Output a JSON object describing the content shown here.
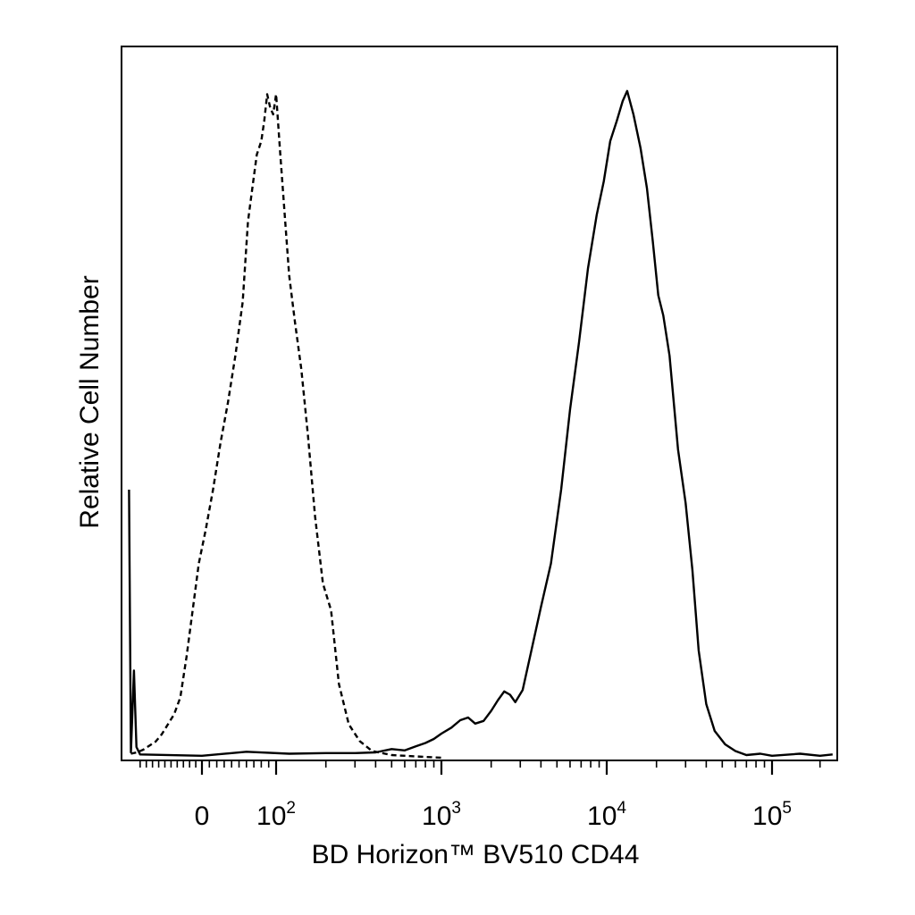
{
  "chart_data": {
    "type": "area",
    "title": "",
    "xlabel": "BD Horizon™ BV510 CD44",
    "ylabel": "Relative Cell Number",
    "x_scale": "biexponential",
    "xlim": [
      -120,
      250000
    ],
    "ylim": [
      0,
      100
    ],
    "grid": false,
    "legend": "none",
    "x_ticks": [
      {
        "value": 0,
        "base": "0",
        "exp": ""
      },
      {
        "value": 100,
        "base": "10",
        "exp": "2"
      },
      {
        "value": 1000,
        "base": "10",
        "exp": "3"
      },
      {
        "value": 10000,
        "base": "10",
        "exp": "4"
      },
      {
        "value": 100000,
        "base": "10",
        "exp": "5"
      }
    ],
    "series": [
      {
        "style": "dashed",
        "color": "#000000",
        "points": [
          [
            -115,
            0.6
          ],
          [
            -105,
            0.8
          ],
          [
            -95,
            1.2
          ],
          [
            -85,
            1.8
          ],
          [
            -75,
            2.4
          ],
          [
            -65,
            3.5
          ],
          [
            -55,
            5
          ],
          [
            -45,
            6.5
          ],
          [
            -35,
            9
          ],
          [
            -25,
            15
          ],
          [
            -15,
            22
          ],
          [
            -5,
            29
          ],
          [
            5,
            34
          ],
          [
            15,
            40
          ],
          [
            25,
            47
          ],
          [
            35,
            53
          ],
          [
            45,
            60
          ],
          [
            55,
            68
          ],
          [
            62,
            80
          ],
          [
            68,
            85
          ],
          [
            74,
            90
          ],
          [
            80,
            92
          ],
          [
            84,
            95
          ],
          [
            88,
            99
          ],
          [
            92,
            97
          ],
          [
            96,
            96
          ],
          [
            100,
            99
          ],
          [
            106,
            90
          ],
          [
            112,
            82
          ],
          [
            120,
            72
          ],
          [
            130,
            65
          ],
          [
            142,
            58
          ],
          [
            156,
            48
          ],
          [
            172,
            36
          ],
          [
            192,
            26
          ],
          [
            215,
            22
          ],
          [
            240,
            11
          ],
          [
            275,
            5
          ],
          [
            320,
            2.5
          ],
          [
            380,
            1
          ],
          [
            500,
            0.4
          ],
          [
            700,
            0.2
          ],
          [
            1000,
            0
          ]
        ]
      },
      {
        "style": "solid",
        "color": "#000000",
        "points": [
          [
            -118,
            40
          ],
          [
            -115,
            0.8
          ],
          [
            -110,
            13
          ],
          [
            -106,
            1.6
          ],
          [
            -100,
            0.5
          ],
          [
            0,
            0.3
          ],
          [
            60,
            0.9
          ],
          [
            120,
            0.6
          ],
          [
            200,
            0.7
          ],
          [
            300,
            0.7
          ],
          [
            400,
            0.8
          ],
          [
            500,
            1.3
          ],
          [
            600,
            1.1
          ],
          [
            700,
            1.7
          ],
          [
            800,
            2.2
          ],
          [
            900,
            2.8
          ],
          [
            1000,
            3.6
          ],
          [
            1150,
            4.5
          ],
          [
            1300,
            5.6
          ],
          [
            1450,
            6
          ],
          [
            1600,
            5.1
          ],
          [
            1800,
            5.5
          ],
          [
            2000,
            7
          ],
          [
            2200,
            8.6
          ],
          [
            2400,
            9.9
          ],
          [
            2600,
            9.4
          ],
          [
            2800,
            8.3
          ],
          [
            3100,
            10.1
          ],
          [
            3500,
            16
          ],
          [
            4000,
            22.5
          ],
          [
            4600,
            29
          ],
          [
            5300,
            40
          ],
          [
            6000,
            52
          ],
          [
            6800,
            62
          ],
          [
            7700,
            73
          ],
          [
            8700,
            81
          ],
          [
            9600,
            86
          ],
          [
            10500,
            92
          ],
          [
            11500,
            95
          ],
          [
            12500,
            98
          ],
          [
            13300,
            99.5
          ],
          [
            14500,
            96
          ],
          [
            16000,
            91
          ],
          [
            17500,
            85
          ],
          [
            19000,
            77
          ],
          [
            20500,
            69
          ],
          [
            22000,
            66
          ],
          [
            24000,
            60
          ],
          [
            27000,
            46
          ],
          [
            30000,
            38
          ],
          [
            33000,
            28
          ],
          [
            36000,
            16
          ],
          [
            40000,
            8
          ],
          [
            45000,
            4
          ],
          [
            52000,
            2
          ],
          [
            60000,
            1
          ],
          [
            70000,
            0.4
          ],
          [
            85000,
            0.6
          ],
          [
            100000,
            0.3
          ],
          [
            150000,
            0.6
          ],
          [
            200000,
            0.3
          ],
          [
            240000,
            0.5
          ]
        ]
      }
    ]
  }
}
